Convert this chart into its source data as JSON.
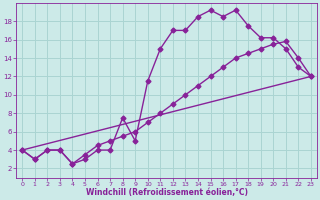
{
  "xlabel": "Windchill (Refroidissement éolien,°C)",
  "background_color": "#cceae8",
  "grid_color": "#aad4d2",
  "line_color": "#882299",
  "xlim": [
    -0.5,
    23.5
  ],
  "ylim": [
    1.0,
    20.0
  ],
  "xticks": [
    0,
    1,
    2,
    3,
    4,
    5,
    6,
    7,
    8,
    9,
    10,
    11,
    12,
    13,
    14,
    15,
    16,
    17,
    18,
    19,
    20,
    21,
    22,
    23
  ],
  "yticks": [
    2,
    4,
    6,
    8,
    10,
    12,
    14,
    16,
    18
  ],
  "series1_x": [
    0,
    1,
    2,
    3,
    4,
    5,
    6,
    7,
    8,
    9,
    10,
    11,
    12,
    13,
    14,
    15,
    16,
    17,
    18,
    19,
    20,
    21,
    22,
    23
  ],
  "series1_y": [
    4.0,
    3.0,
    4.0,
    4.0,
    2.5,
    3.0,
    4.0,
    4.0,
    7.5,
    5.0,
    11.5,
    15.0,
    17.0,
    17.0,
    18.5,
    19.2,
    18.5,
    19.2,
    17.5,
    16.2,
    16.2,
    15.0,
    13.0,
    12.0
  ],
  "series2_x": [
    0,
    1,
    2,
    3,
    4,
    5,
    6,
    7,
    8,
    9,
    10,
    11,
    12,
    13,
    14,
    15,
    16,
    17,
    18,
    19,
    20,
    21,
    22,
    23
  ],
  "series2_y": [
    4.0,
    3.0,
    4.0,
    4.0,
    2.5,
    3.5,
    4.5,
    5.0,
    5.5,
    6.0,
    7.0,
    8.0,
    9.0,
    10.0,
    11.0,
    12.0,
    13.0,
    14.0,
    14.5,
    15.0,
    15.5,
    15.8,
    14.0,
    12.0
  ],
  "series3_x": [
    0,
    23
  ],
  "series3_y": [
    4.0,
    12.0
  ],
  "marker": "D",
  "markersize": 2.5,
  "linewidth": 1.0
}
